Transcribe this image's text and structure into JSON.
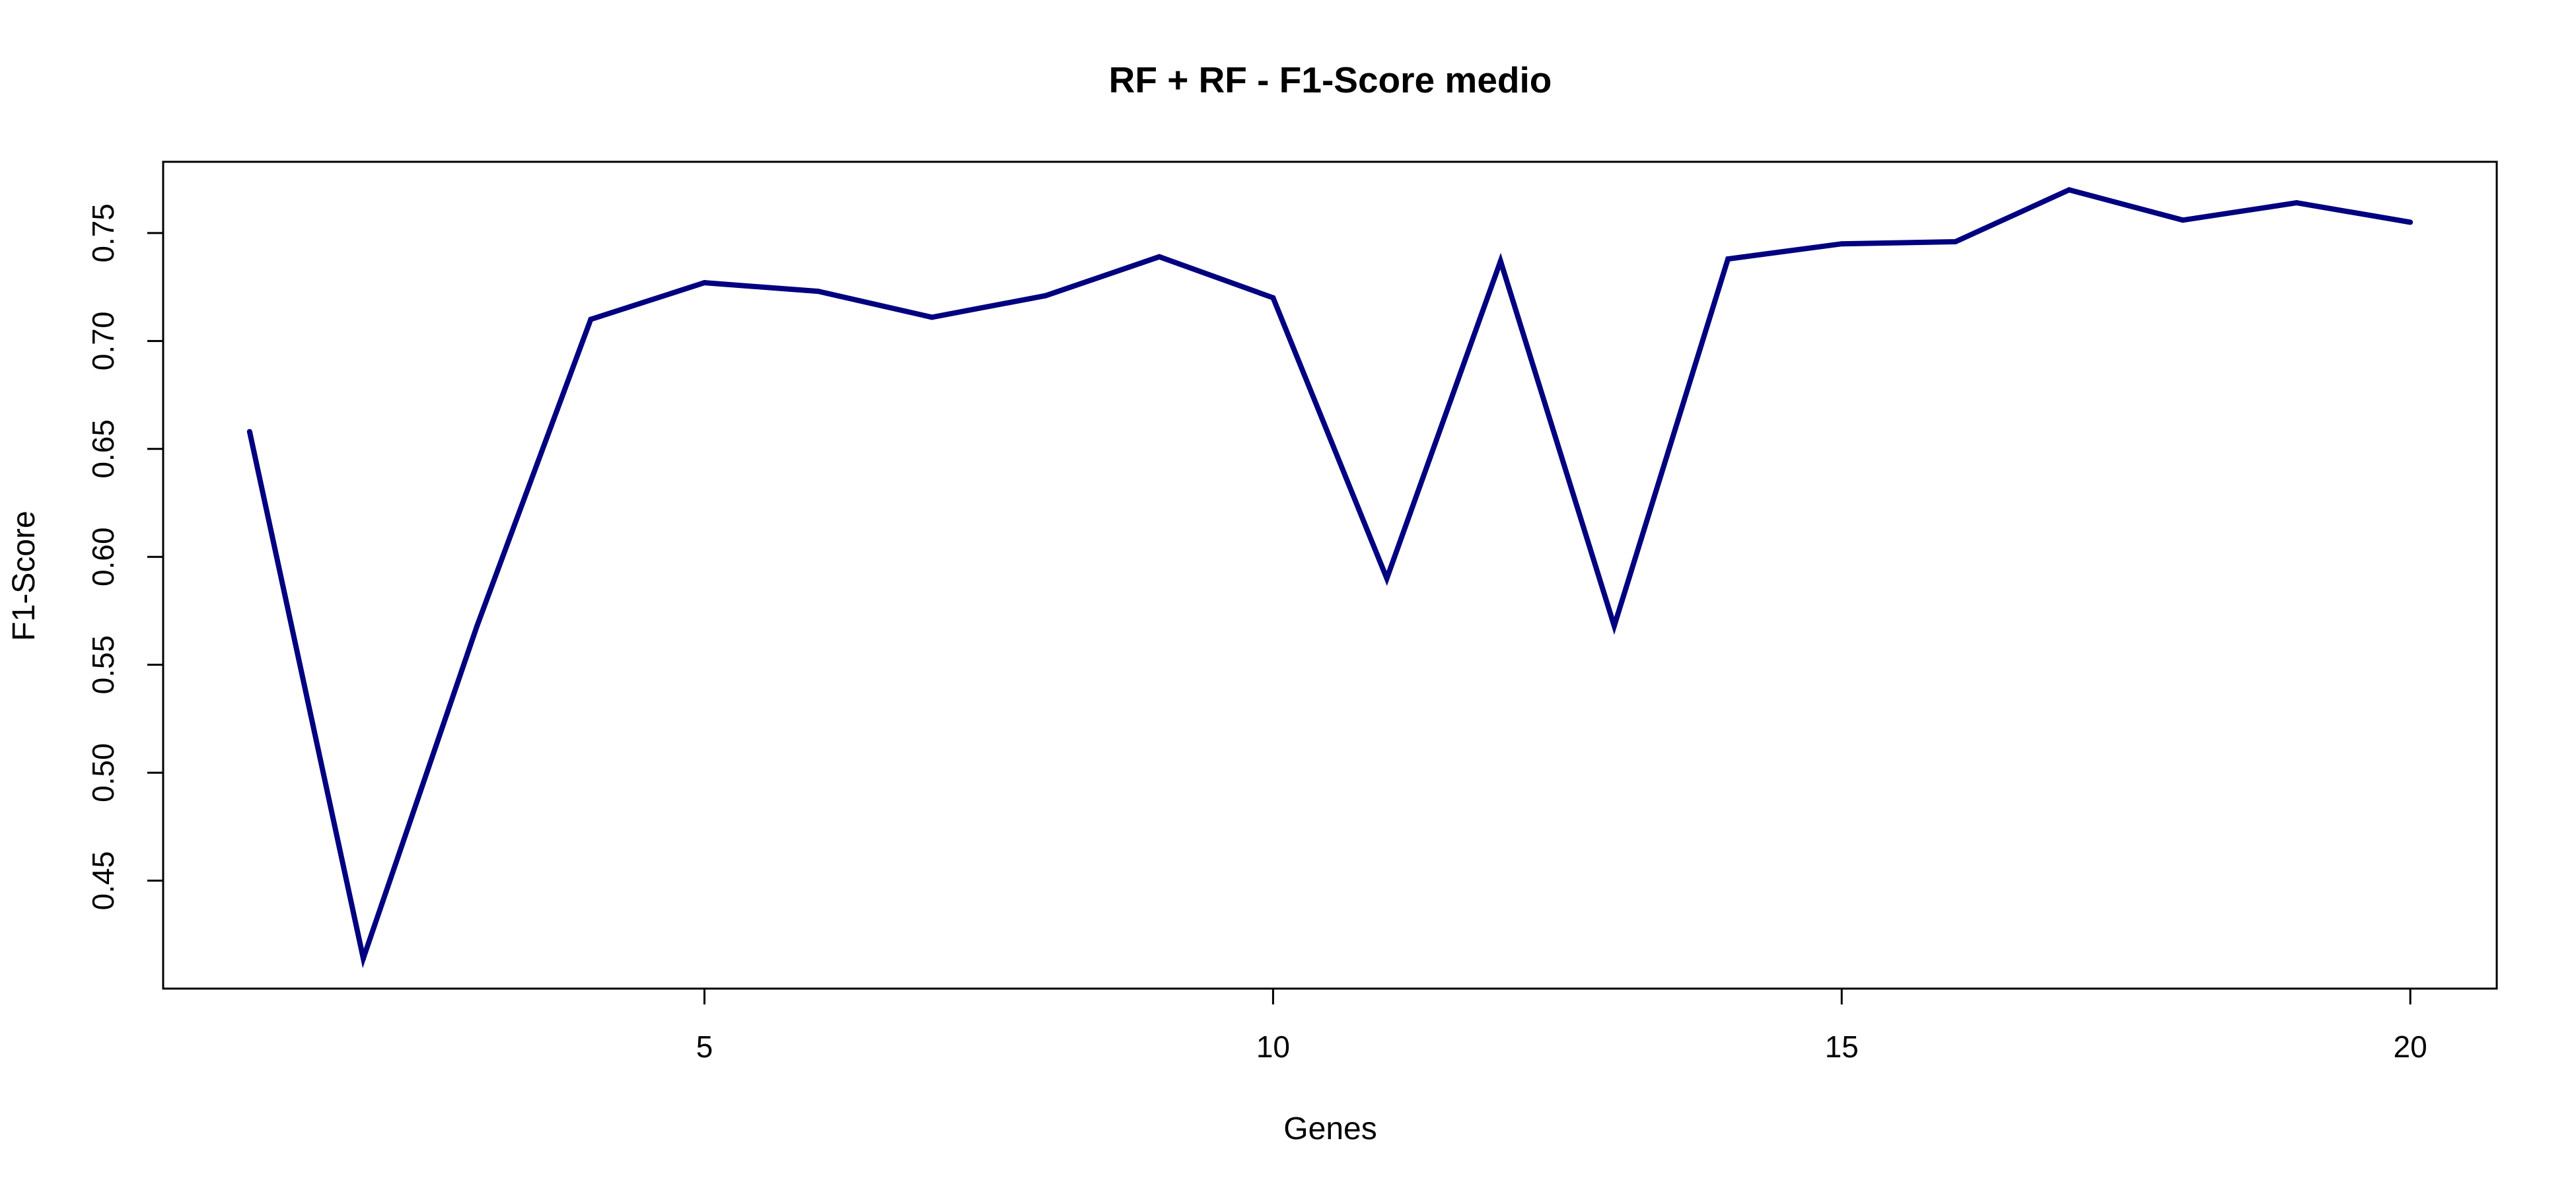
{
  "chart_data": {
    "type": "line",
    "title": "RF + RF - F1-Score medio",
    "xlabel": "Genes",
    "ylabel": "F1-Score",
    "x": [
      1,
      2,
      3,
      4,
      5,
      6,
      7,
      8,
      9,
      10,
      11,
      12,
      13,
      14,
      15,
      16,
      17,
      18,
      19,
      20
    ],
    "series": [
      {
        "values": [
          0.658,
          0.414,
          0.568,
          0.71,
          0.727,
          0.723,
          0.711,
          0.721,
          0.739,
          0.72,
          0.59,
          0.737,
          0.568,
          0.738,
          0.745,
          0.746,
          0.77,
          0.756,
          0.764,
          0.755
        ]
      }
    ],
    "xlim": [
      0.24,
      20.76
    ],
    "ylim": [
      0.4,
      0.783
    ],
    "xticks": [
      5,
      10,
      15,
      20
    ],
    "xtick_labels": [
      "5",
      "10",
      "15",
      "20"
    ],
    "yticks": [
      0.45,
      0.5,
      0.55,
      0.6,
      0.65,
      0.7,
      0.75
    ],
    "ytick_labels": [
      "0.45",
      "0.50",
      "0.55",
      "0.60",
      "0.65",
      "0.70",
      "0.75"
    ],
    "grid": false,
    "colors": {
      "line": "#000080",
      "axis": "#000000"
    }
  }
}
